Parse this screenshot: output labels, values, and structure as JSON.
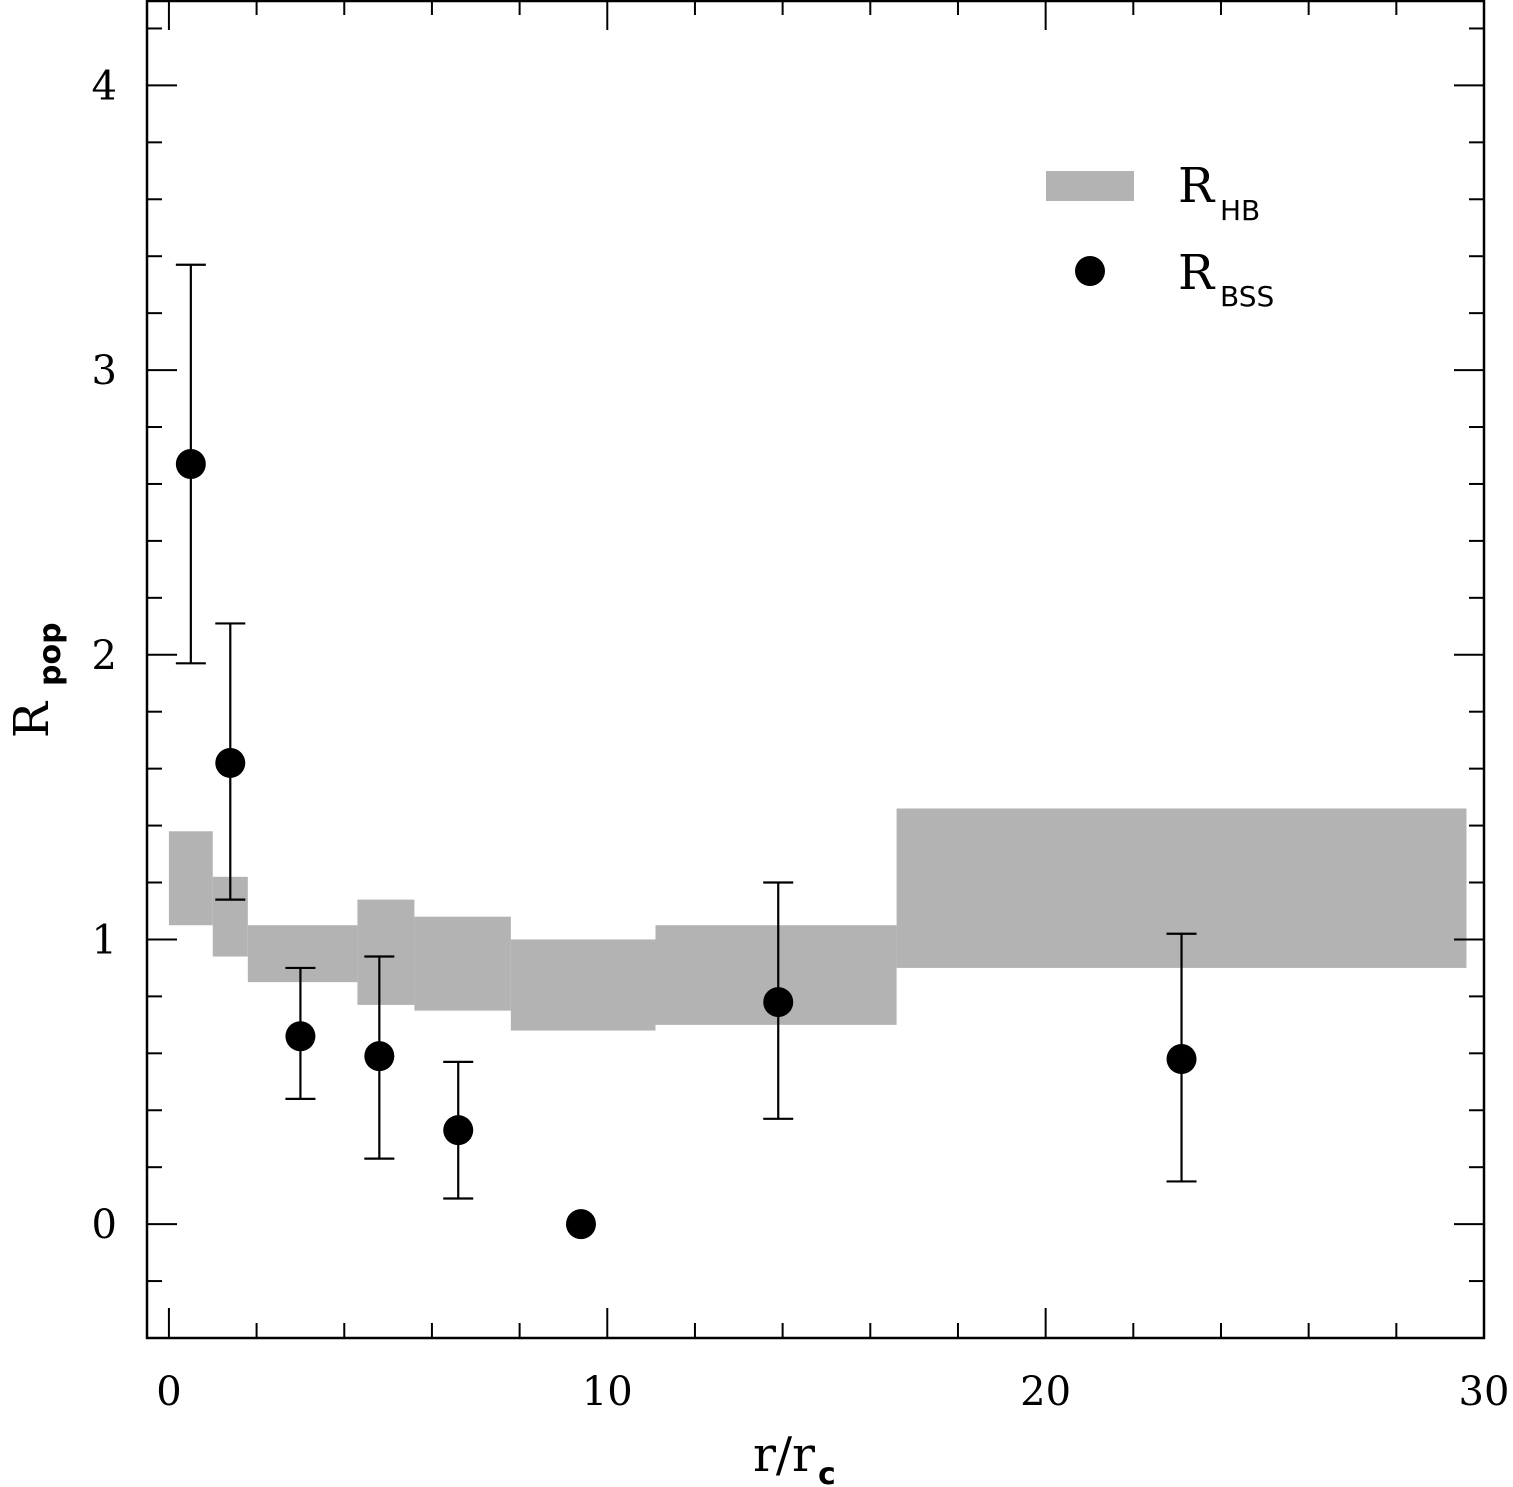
{
  "chart_data": {
    "type": "scatter",
    "xlabel": {
      "main": "r/r",
      "sub": "c"
    },
    "ylabel": {
      "main": "R",
      "sub": "pop"
    },
    "xlim": [
      -0.5,
      30
    ],
    "ylim": [
      -0.4,
      4.3
    ],
    "xticks": [
      0,
      10,
      20,
      30
    ],
    "xtick_labels": [
      "0",
      "10",
      "20",
      "30"
    ],
    "x_minor_step": 2,
    "yticks": [
      0,
      1,
      2,
      3,
      4
    ],
    "ytick_labels": [
      "0",
      "1",
      "2",
      "3",
      "4"
    ],
    "y_minor_step": 0.2,
    "legend": {
      "position": "top-right",
      "entries": [
        {
          "main": "R",
          "sub": "HB",
          "kind": "band"
        },
        {
          "main": "R",
          "sub": "BSS",
          "kind": "point"
        }
      ]
    },
    "hb_band": [
      {
        "x0": 0.0,
        "x1": 1.0,
        "low": 1.05,
        "high": 1.38
      },
      {
        "x0": 1.0,
        "x1": 1.8,
        "low": 0.94,
        "high": 1.22
      },
      {
        "x0": 1.8,
        "x1": 4.3,
        "low": 0.85,
        "high": 1.05
      },
      {
        "x0": 4.3,
        "x1": 5.6,
        "low": 0.77,
        "high": 1.14
      },
      {
        "x0": 5.6,
        "x1": 7.8,
        "low": 0.75,
        "high": 1.08
      },
      {
        "x0": 7.8,
        "x1": 11.1,
        "low": 0.68,
        "high": 1.0
      },
      {
        "x0": 11.1,
        "x1": 16.6,
        "low": 0.7,
        "high": 1.05
      },
      {
        "x0": 16.6,
        "x1": 29.6,
        "low": 0.9,
        "high": 1.46
      }
    ],
    "bss_points": [
      {
        "x": 0.5,
        "y": 2.67,
        "err_low": 1.97,
        "err_high": 3.37
      },
      {
        "x": 1.4,
        "y": 1.62,
        "err_low": 1.14,
        "err_high": 2.11
      },
      {
        "x": 3.0,
        "y": 0.66,
        "err_low": 0.44,
        "err_high": 0.9
      },
      {
        "x": 4.8,
        "y": 0.59,
        "err_low": 0.23,
        "err_high": 0.94
      },
      {
        "x": 6.6,
        "y": 0.33,
        "err_low": 0.09,
        "err_high": 0.57
      },
      {
        "x": 9.4,
        "y": 0.0
      },
      {
        "x": 13.9,
        "y": 0.78,
        "err_low": 0.37,
        "err_high": 1.2
      },
      {
        "x": 23.1,
        "y": 0.58,
        "err_low": 0.15,
        "err_high": 1.02
      }
    ],
    "colors": {
      "band": "#b3b3b3",
      "points": "#000000",
      "frame": "#000000"
    }
  }
}
